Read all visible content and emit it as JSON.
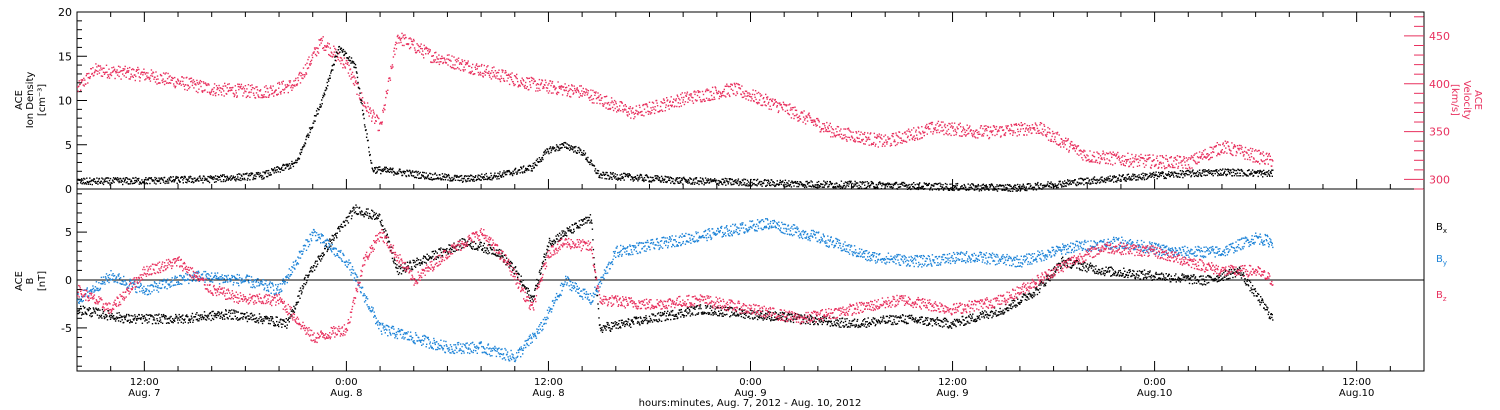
{
  "chart_data": [
    {
      "type": "scatter",
      "panel": "top",
      "ylabel_left": [
        "ACE",
        "Ion Density",
        "[cm⁻³]"
      ],
      "ylabel_right": [
        "ACE",
        "Velocity",
        "[km/s]"
      ],
      "ylim_left": [
        0,
        20
      ],
      "yticks_left": [
        0,
        5,
        10,
        15,
        20
      ],
      "ylim_right": [
        290,
        475
      ],
      "yticks_right": [
        300,
        350,
        400,
        450
      ],
      "xlim_hours": [
        -16,
        64
      ],
      "grid": false,
      "series": [
        {
          "axis": "left",
          "color": "#000000",
          "x": [
            -16,
            -12,
            -8,
            -5,
            -3,
            -1.5,
            -0.5,
            0.5,
            1.5,
            3,
            5,
            7,
            9,
            11,
            12,
            13,
            14,
            15,
            16,
            20,
            24,
            28,
            32,
            36,
            40,
            44,
            48,
            52,
            55
          ],
          "values": [
            0.9,
            1.0,
            1.2,
            1.6,
            3.0,
            10.0,
            16.0,
            14.0,
            2.3,
            2.0,
            1.5,
            1.2,
            1.6,
            2.5,
            4.5,
            5.0,
            4.2,
            1.6,
            1.5,
            1.0,
            0.8,
            0.6,
            0.5,
            0.3,
            0.2,
            1.0,
            1.6,
            2.0,
            1.8
          ]
        },
        {
          "axis": "right",
          "color": "#e8305e",
          "x": [
            -16,
            -15,
            -12,
            -8,
            -5,
            -3,
            -1.5,
            0,
            1,
            2,
            3,
            5,
            8,
            11,
            14,
            17,
            20,
            23,
            26,
            29,
            32,
            35,
            38,
            41,
            44,
            47,
            50,
            52,
            55
          ],
          "values": [
            395,
            415,
            410,
            395,
            392,
            400,
            445,
            420,
            380,
            355,
            450,
            430,
            415,
            400,
            392,
            370,
            385,
            395,
            375,
            350,
            340,
            355,
            350,
            355,
            325,
            320,
            318,
            335,
            320
          ]
        }
      ]
    },
    {
      "type": "scatter",
      "panel": "bottom",
      "ylabel": [
        "ACE",
        "B",
        "[nT]"
      ],
      "ylim": [
        -9.5,
        9.5
      ],
      "yticks": [
        -5,
        0,
        5
      ],
      "xlim_hours": [
        -16,
        64
      ],
      "x_tick_hours": [
        -12,
        0,
        12,
        24,
        36,
        48,
        60
      ],
      "x_tick_labels": [
        [
          "12:00",
          "Aug. 7"
        ],
        [
          "0:00",
          "Aug. 8"
        ],
        [
          "12:00",
          "Aug. 8"
        ],
        [
          "0:00",
          "Aug. 9"
        ],
        [
          "12:00",
          "Aug. 9"
        ],
        [
          "0:00",
          "Aug.10"
        ],
        [
          "12:00",
          "Aug.10"
        ]
      ],
      "xlabel": "hours:minutes, Aug.  7, 2012 - Aug. 10, 2012",
      "legend_placement": "right",
      "zero_line": true,
      "series": [
        {
          "name": "Bx",
          "color": "#000000",
          "x": [
            -16,
            -13,
            -10,
            -7,
            -5,
            -3.5,
            -2.5,
            -1,
            0.5,
            2,
            3,
            5,
            7,
            9,
            10,
            11,
            12,
            13,
            14.5,
            15,
            18,
            21,
            24,
            27,
            30,
            33,
            36,
            39,
            41,
            42.5,
            45,
            48,
            51,
            53,
            55
          ],
          "values": [
            -3.0,
            -4.0,
            -4.0,
            -3.5,
            -4.0,
            -4.5,
            0.0,
            4.0,
            7.5,
            6.5,
            1.0,
            2.5,
            4.0,
            3.0,
            1.0,
            -2.0,
            4.0,
            5.0,
            6.5,
            -5.0,
            -4.0,
            -3.0,
            -3.5,
            -4.0,
            -4.5,
            -4.0,
            -4.5,
            -3.0,
            -1.0,
            2.0,
            1.0,
            0.5,
            0.0,
            1.0,
            -4.0
          ]
        },
        {
          "name": "By",
          "color": "#1e84d8",
          "x": [
            -16,
            -14,
            -12,
            -9,
            -6,
            -4,
            -2,
            0,
            2,
            4,
            6,
            8,
            10,
            11.5,
            13,
            14.5,
            16,
            19,
            22,
            25,
            28,
            31,
            34,
            37,
            40,
            43,
            46,
            49,
            52,
            54,
            55
          ],
          "values": [
            -2.0,
            0.5,
            -1.0,
            0.5,
            0.0,
            -1.0,
            5.0,
            2.0,
            -5.0,
            -6.0,
            -7.0,
            -7.0,
            -8.0,
            -5.0,
            0.0,
            -2.0,
            3.0,
            4.0,
            5.0,
            6.0,
            4.5,
            2.5,
            2.0,
            2.5,
            2.0,
            3.5,
            4.0,
            3.0,
            3.0,
            4.5,
            4.0
          ]
        },
        {
          "name": "Bz",
          "color": "#e8305e",
          "x": [
            -16,
            -14,
            -12,
            -10,
            -8,
            -6,
            -4,
            -2,
            0,
            1,
            2,
            4,
            6,
            8,
            9.5,
            11,
            12,
            13,
            14.5,
            15,
            18,
            21,
            24,
            27,
            30,
            33,
            36,
            39,
            41,
            43,
            45,
            48,
            50,
            52,
            54,
            55
          ],
          "values": [
            -1.0,
            -3.0,
            1.0,
            2.0,
            -1.0,
            -2.0,
            -2.0,
            -6.0,
            -5.0,
            2.0,
            5.0,
            0.0,
            3.0,
            5.0,
            2.0,
            -3.0,
            3.0,
            4.0,
            3.5,
            -2.0,
            -2.5,
            -2.0,
            -3.0,
            -4.0,
            -3.0,
            -2.0,
            -3.0,
            -2.0,
            0.0,
            2.0,
            3.5,
            3.0,
            2.0,
            1.0,
            1.0,
            0.0
          ]
        }
      ]
    }
  ],
  "legend_labels": {
    "bx_main": "B",
    "bx_sub": "x",
    "by_main": "B",
    "by_sub": "y",
    "bz_main": "B",
    "bz_sub": "z"
  }
}
